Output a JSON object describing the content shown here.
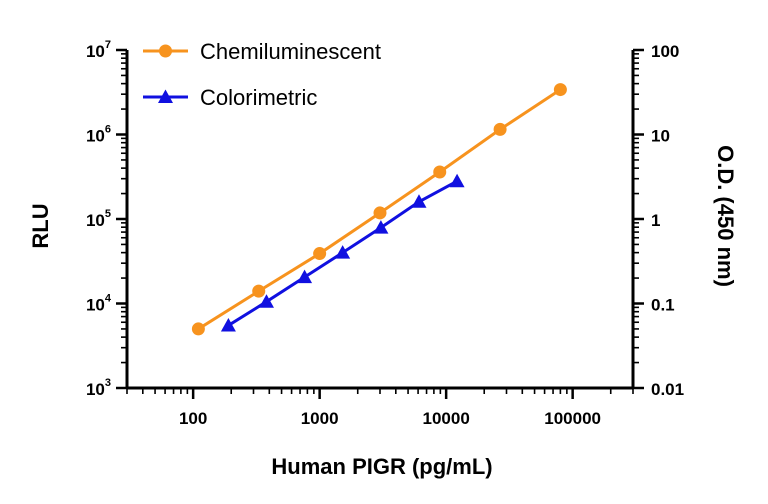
{
  "chart_data": {
    "type": "line",
    "xlabel": "Human PIGR (pg/mL)",
    "ylabel": "RLU",
    "y2label": "O.D. (450 nm)",
    "x_scale": "log",
    "y_scale": "log",
    "y2_scale": "log",
    "xlim": [
      30,
      300000
    ],
    "ylim": [
      1000,
      10000000
    ],
    "y2lim": [
      0.01,
      100
    ],
    "x_ticks": [
      100,
      1000,
      10000,
      100000
    ],
    "x_tick_labels": [
      "100",
      "1000",
      "10000",
      "100000"
    ],
    "y_ticks": [
      {
        "value": 1000,
        "base": "10",
        "exp": "3"
      },
      {
        "value": 10000,
        "base": "10",
        "exp": "4"
      },
      {
        "value": 100000,
        "base": "10",
        "exp": "5"
      },
      {
        "value": 1000000,
        "base": "10",
        "exp": "6"
      },
      {
        "value": 10000000,
        "base": "10",
        "exp": "7"
      }
    ],
    "y2_ticks": [
      0.01,
      0.1,
      1,
      10,
      100
    ],
    "y2_tick_labels": [
      "0.01",
      "0.1",
      "1",
      "10",
      "100"
    ],
    "grid": false,
    "legend_position": "top-left",
    "series": [
      {
        "name": "Chemiluminescent",
        "axis": "left",
        "marker": "circle",
        "color": "#F7931E",
        "x": [
          110,
          330,
          1000,
          3000,
          8900,
          26700,
          80000
        ],
        "y": [
          5000,
          14000,
          39000,
          118000,
          360000,
          1150000,
          3400000
        ]
      },
      {
        "name": "Colorimetric",
        "axis": "right",
        "marker": "triangle",
        "color": "#1010E0",
        "x": [
          190,
          380,
          760,
          1520,
          3050,
          6100,
          12200
        ],
        "y": [
          0.055,
          0.105,
          0.205,
          0.4,
          0.79,
          1.6,
          2.8
        ]
      }
    ]
  }
}
